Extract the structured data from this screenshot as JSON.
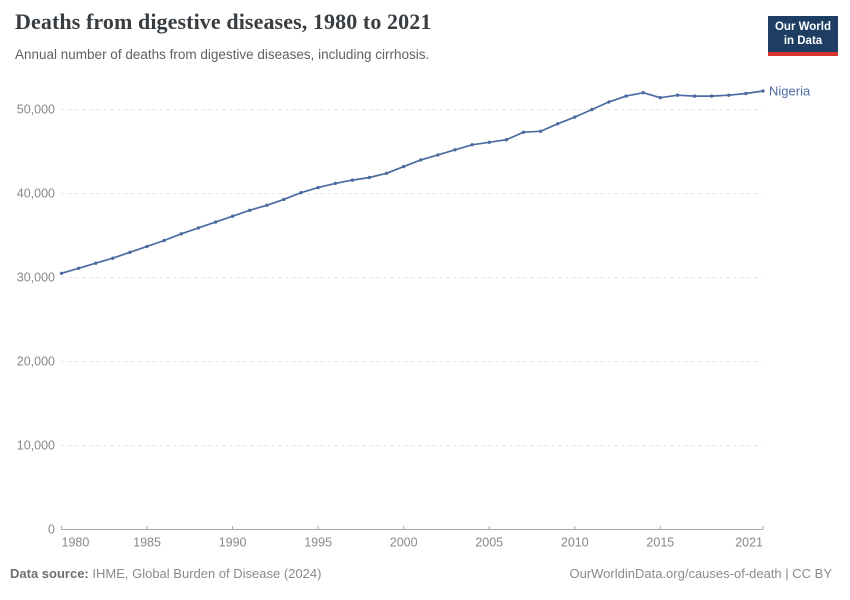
{
  "header": {
    "title": "Deaths from digestive diseases, 1980 to 2021",
    "subtitle": "Annual number of deaths from digestive diseases, including cirrhosis.",
    "logo": {
      "line1": "Our World",
      "line2": "in Data"
    }
  },
  "chart_data": {
    "type": "line",
    "title": "Deaths from digestive diseases, 1980 to 2021",
    "xlabel": "",
    "ylabel": "",
    "xlim": [
      1980,
      2021
    ],
    "ylim": [
      0,
      50000
    ],
    "grid": "horizontal-dashed",
    "legend_position": "end-of-line-label",
    "x_ticks": [
      1980,
      1985,
      1990,
      1995,
      2000,
      2005,
      2010,
      2015,
      2021
    ],
    "x_tick_labels": [
      "1980",
      "1985",
      "1990",
      "1995",
      "2000",
      "2005",
      "2010",
      "2015",
      "2021"
    ],
    "y_ticks": [
      0,
      10000,
      20000,
      30000,
      40000,
      50000
    ],
    "y_tick_labels": [
      "0",
      "10,000",
      "20,000",
      "30,000",
      "40,000",
      "50,000"
    ],
    "x": [
      1980,
      1981,
      1982,
      1983,
      1984,
      1985,
      1986,
      1987,
      1988,
      1989,
      1990,
      1991,
      1992,
      1993,
      1994,
      1995,
      1996,
      1997,
      1998,
      1999,
      2000,
      2001,
      2002,
      2003,
      2004,
      2005,
      2006,
      2007,
      2008,
      2009,
      2010,
      2011,
      2012,
      2013,
      2014,
      2015,
      2016,
      2017,
      2018,
      2019,
      2020,
      2021
    ],
    "series": [
      {
        "name": "Nigeria",
        "color": "#4c6ba0",
        "values": [
          30500,
          31100,
          31700,
          32300,
          33000,
          33700,
          34400,
          35200,
          35900,
          36600,
          37300,
          38000,
          38600,
          39300,
          40100,
          40700,
          41200,
          41600,
          41900,
          42400,
          43200,
          44000,
          44600,
          45200,
          45800,
          46100,
          46400,
          47300,
          47400,
          48300,
          49100,
          50000,
          50900,
          51600,
          52000,
          51400,
          51700,
          51600,
          51600,
          51700,
          51900,
          52200
        ]
      }
    ]
  },
  "footer": {
    "source_label": "Data source:",
    "source_text": "IHME, Global Burden of Disease (2024)",
    "rights": "OurWorldinData.org/causes-of-death | CC BY"
  },
  "colors": {
    "line": "#4c6ba0",
    "title": "#383d42",
    "subtitle": "#616161",
    "tick_text": "#888888",
    "gridline": "#e2e2e2",
    "axis": "#a8a8a8",
    "footer_text": "#8b8b8b",
    "logo_bg": "#1d3d63",
    "logo_red": "#d8352e"
  }
}
